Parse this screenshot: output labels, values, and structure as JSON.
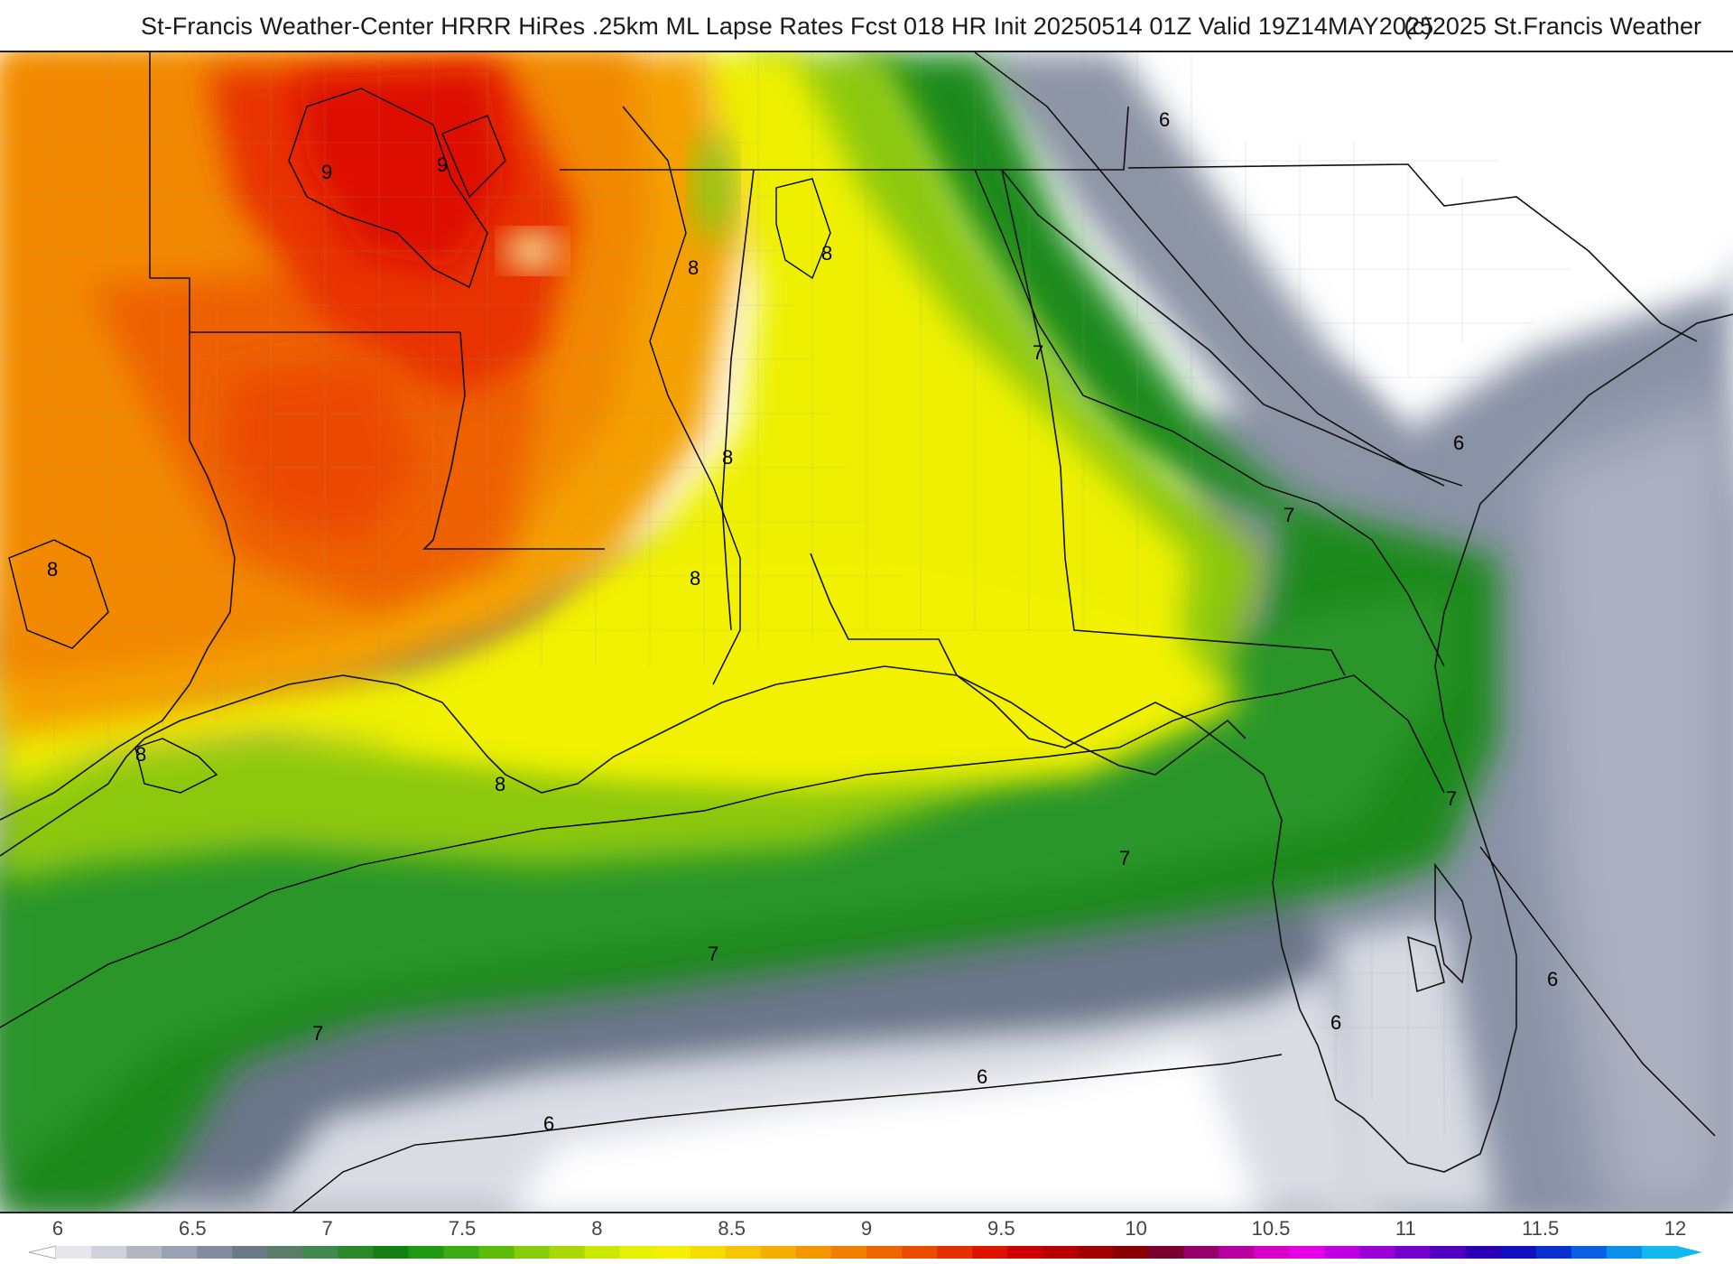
{
  "header": {
    "title": "St-Francis Weather-Center HRRR HiRes .25km ML Lapse Rates  Fcst 018 HR Init 20250514 01Z  Valid 19Z14MAY2025",
    "copyright": "(c)2025 St.Francis Weather"
  },
  "colorbar": {
    "ticks": [
      "6",
      "6.5",
      "7",
      "7.5",
      "8",
      "8.5",
      "9",
      "9.5",
      "10",
      "10.5",
      "11",
      "11.5",
      "12"
    ],
    "colors": [
      "#e6e6ec",
      "#cfd2da",
      "#b2b7c4",
      "#9ba2b3",
      "#838c9f",
      "#6b7a86",
      "#5a7e6a",
      "#3f8a4c",
      "#2a8a2a",
      "#138013",
      "#1f9a12",
      "#3aab12",
      "#5cbc0a",
      "#86cc08",
      "#a8d800",
      "#cbe800",
      "#e6f200",
      "#f5f000",
      "#f6dc00",
      "#f7c400",
      "#f5ad00",
      "#f49600",
      "#f27e00",
      "#ee6600",
      "#ea4d00",
      "#e43000",
      "#dd1500",
      "#cf0000",
      "#b80000",
      "#a00000",
      "#8a0000",
      "#7a0030",
      "#94006a",
      "#b800a0",
      "#d600c8",
      "#e600e6",
      "#c000e0",
      "#9a00d8",
      "#7400cc",
      "#5000c0",
      "#2a00b4",
      "#1010c0",
      "#0a30d0",
      "#0a60e0",
      "#0a90ea",
      "#12b8f0"
    ]
  },
  "map": {
    "contour_labels": [
      "9",
      "9",
      "8",
      "8",
      "8",
      "8",
      "8",
      "8",
      "8",
      "7",
      "7",
      "7",
      "7",
      "7",
      "7",
      "6",
      "6",
      "6",
      "6",
      "6",
      "6"
    ]
  }
}
